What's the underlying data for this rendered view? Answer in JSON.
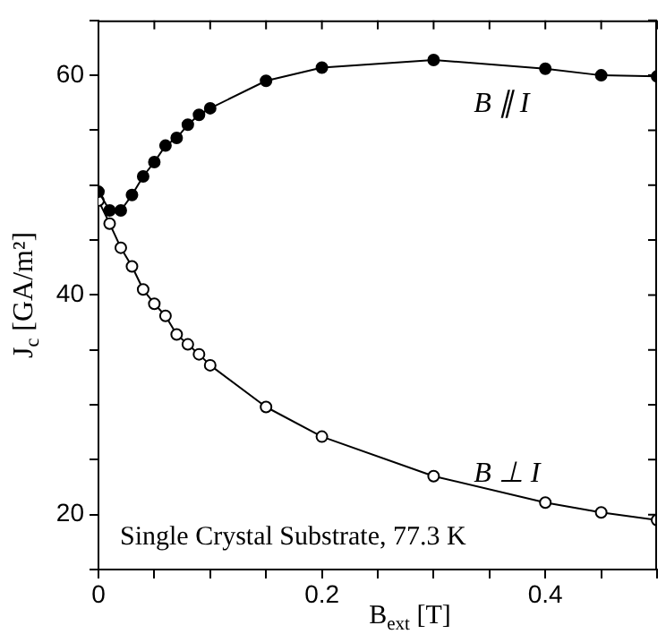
{
  "chart_data": {
    "type": "line",
    "xlabel": "B$_{ext}$ [T]",
    "ylabel": "J$_{c}$ [GA/m²]",
    "annotations": [
      "Single Crystal Substrate, 77.3 K"
    ],
    "xlim": [
      0,
      0.5
    ],
    "ylim": [
      15,
      65
    ],
    "xticks": [
      0,
      {
        "value": 0.05,
        "label": null
      },
      {
        "value": 0.1,
        "label": null
      },
      {
        "value": 0.15,
        "label": null
      },
      0.2,
      {
        "value": 0.25,
        "label": null
      },
      {
        "value": 0.3,
        "label": null
      },
      {
        "value": 0.35,
        "label": null
      },
      0.4,
      {
        "value": 0.45,
        "label": null
      },
      {
        "value": 0.5,
        "label": null
      }
    ],
    "yticks": [
      {
        "value": 15,
        "label": null
      },
      20,
      {
        "value": 25,
        "label": null
      },
      {
        "value": 30,
        "label": null
      },
      {
        "value": 35,
        "label": null
      },
      40,
      {
        "value": 45,
        "label": null
      },
      {
        "value": 50,
        "label": null
      },
      {
        "value": 55,
        "label": null
      },
      60,
      {
        "value": 65,
        "label": null
      }
    ],
    "grid": false,
    "legend": false,
    "marker": "circle",
    "line_style": "solid",
    "series": [
      {
        "name": "B ∥ I",
        "color": "#000000",
        "x": [
          0,
          0.01,
          0.02,
          0.03,
          0.04,
          0.05,
          0.06,
          0.07,
          0.08,
          0.09,
          0.1,
          0.15,
          0.2,
          0.3,
          0.4,
          0.45,
          0.5
        ],
        "values": [
          49.4,
          47.7,
          47.7,
          49.1,
          50.8,
          52.1,
          53.6,
          54.3,
          55.5,
          56.4,
          57.0,
          59.5,
          60.7,
          61.4,
          60.6,
          60.0,
          59.9
        ]
      },
      {
        "name": "B ⊥ I",
        "color": "#000000",
        "x": [
          0,
          0.01,
          0.02,
          0.03,
          0.04,
          0.05,
          0.06,
          0.07,
          0.08,
          0.09,
          0.1,
          0.15,
          0.2,
          0.3,
          0.4,
          0.45,
          0.5
        ],
        "values": [
          48.6,
          46.5,
          44.3,
          42.6,
          40.5,
          39.2,
          38.1,
          36.4,
          35.5,
          34.6,
          33.6,
          29.8,
          27.1,
          23.5,
          21.1,
          20.2,
          19.5
        ]
      }
    ]
  }
}
